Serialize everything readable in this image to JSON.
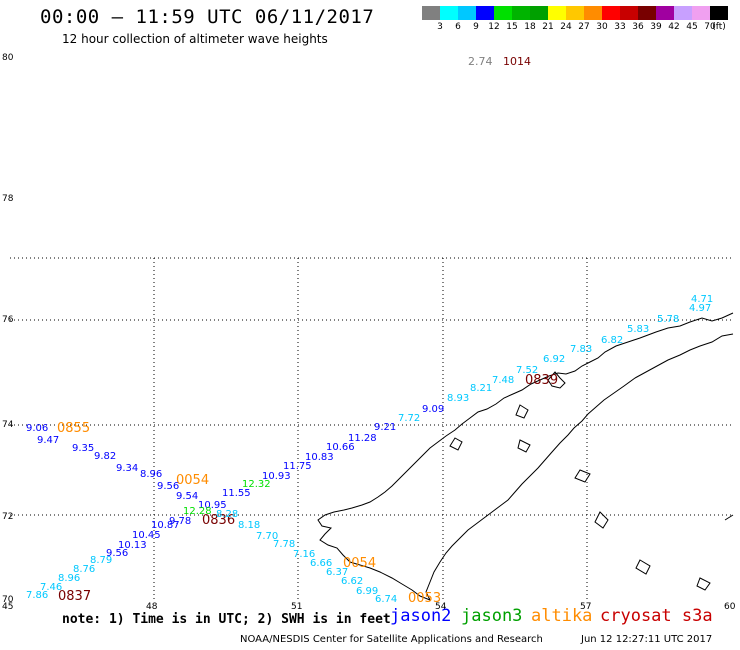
{
  "header": {
    "title": "00:00 – 11:59 UTC 06/11/2017",
    "subtitle": "12 hour collection of altimeter wave heights"
  },
  "legend": {
    "colors": [
      "#808080",
      "#00ffff",
      "#00c8ff",
      "#0000ff",
      "#00e000",
      "#00b400",
      "#00a000",
      "#ffff00",
      "#ffc800",
      "#ff8c00",
      "#ff0000",
      "#c80000",
      "#780000",
      "#a000a0",
      "#c8a0ff",
      "#f0a0f0",
      "#000000"
    ],
    "labels": [
      "3",
      "6",
      "9",
      "12",
      "15",
      "18",
      "21",
      "24",
      "27",
      "30",
      "33",
      "36",
      "39",
      "42",
      "45",
      "70",
      "(ft)"
    ]
  },
  "map": {
    "lat_labels": [
      "80",
      "78",
      "76",
      "74",
      "72",
      "70"
    ],
    "lon_labels": [
      "45",
      "48",
      "51",
      "54",
      "57",
      "60"
    ],
    "top_annotation": {
      "value": "2.74",
      "time": "1014"
    },
    "time_labels": [
      {
        "text": "0855",
        "color": "#ff8c00"
      },
      {
        "text": "0054",
        "color": "#ff8c00"
      },
      {
        "text": "0836",
        "color": "#780000"
      },
      {
        "text": "0839",
        "color": "#780000"
      },
      {
        "text": "0054",
        "color": "#ff8c00"
      },
      {
        "text": "0053",
        "color": "#ff8c00"
      },
      {
        "text": "0837",
        "color": "#780000"
      }
    ],
    "track_values": [
      {
        "text": "4.71",
        "color": "#00c8ff"
      },
      {
        "text": "4.97",
        "color": "#00c8ff"
      },
      {
        "text": "5.78",
        "color": "#00c8ff"
      },
      {
        "text": "5.83",
        "color": "#00c8ff"
      },
      {
        "text": "6.82",
        "color": "#00c8ff"
      },
      {
        "text": "7.83",
        "color": "#00c8ff"
      },
      {
        "text": "6.92",
        "color": "#00c8ff"
      },
      {
        "text": "7.52",
        "color": "#00c8ff"
      },
      {
        "text": "7.48",
        "color": "#00c8ff"
      },
      {
        "text": "8.21",
        "color": "#00c8ff"
      },
      {
        "text": "8.93",
        "color": "#00c8ff"
      },
      {
        "text": "9.09",
        "color": "#0000ff"
      },
      {
        "text": "7.72",
        "color": "#00c8ff"
      },
      {
        "text": "9.21",
        "color": "#0000ff"
      },
      {
        "text": "11.28",
        "color": "#0000ff"
      },
      {
        "text": "10.66",
        "color": "#0000ff"
      },
      {
        "text": "10.83",
        "color": "#0000ff"
      },
      {
        "text": "11.75",
        "color": "#0000ff"
      },
      {
        "text": "10.93",
        "color": "#0000ff"
      },
      {
        "text": "12.32",
        "color": "#00e000"
      },
      {
        "text": "11.55",
        "color": "#0000ff"
      },
      {
        "text": "10.95",
        "color": "#0000ff"
      },
      {
        "text": "9.54",
        "color": "#0000ff"
      },
      {
        "text": "9.56",
        "color": "#0000ff"
      },
      {
        "text": "8.96",
        "color": "#0000ff"
      },
      {
        "text": "9.34",
        "color": "#0000ff"
      },
      {
        "text": "9.82",
        "color": "#0000ff"
      },
      {
        "text": "9.35",
        "color": "#0000ff"
      },
      {
        "text": "9.47",
        "color": "#0000ff"
      },
      {
        "text": "9.06",
        "color": "#0000ff"
      },
      {
        "text": "12.28",
        "color": "#00e000"
      },
      {
        "text": "8.28",
        "color": "#00c8ff"
      },
      {
        "text": "8.18",
        "color": "#00c8ff"
      },
      {
        "text": "7.70",
        "color": "#00c8ff"
      },
      {
        "text": "7.78",
        "color": "#00c8ff"
      },
      {
        "text": "7.16",
        "color": "#00c8ff"
      },
      {
        "text": "6.66",
        "color": "#00c8ff"
      },
      {
        "text": "6.37",
        "color": "#00c8ff"
      },
      {
        "text": "6.62",
        "color": "#00c8ff"
      },
      {
        "text": "6.99",
        "color": "#00c8ff"
      },
      {
        "text": "6.74",
        "color": "#00c8ff"
      },
      {
        "text": "9.78",
        "color": "#0000ff"
      },
      {
        "text": "10.87",
        "color": "#0000ff"
      },
      {
        "text": "10.45",
        "color": "#0000ff"
      },
      {
        "text": "10.13",
        "color": "#0000ff"
      },
      {
        "text": "9.56",
        "color": "#0000ff"
      },
      {
        "text": "8.79",
        "color": "#00c8ff"
      },
      {
        "text": "8.76",
        "color": "#00c8ff"
      },
      {
        "text": "8.96",
        "color": "#00c8ff"
      },
      {
        "text": "7.46",
        "color": "#00c8ff"
      },
      {
        "text": "7.86",
        "color": "#00c8ff"
      }
    ]
  },
  "footer": {
    "note": "note:  1) Time is in UTC;  2) SWH is in feet",
    "satellites": [
      {
        "name": "jason2",
        "color": "#0000ff"
      },
      {
        "name": "jason3",
        "color": "#00a000"
      },
      {
        "name": "altika",
        "color": "#ff8c00"
      },
      {
        "name": "cryosat s3a",
        "color": "#c80000"
      }
    ],
    "credit": "NOAA/NESDIS Center for Satellite Applications and Research",
    "timestamp": "Jun 12 12:27:11 UTC 2017"
  }
}
